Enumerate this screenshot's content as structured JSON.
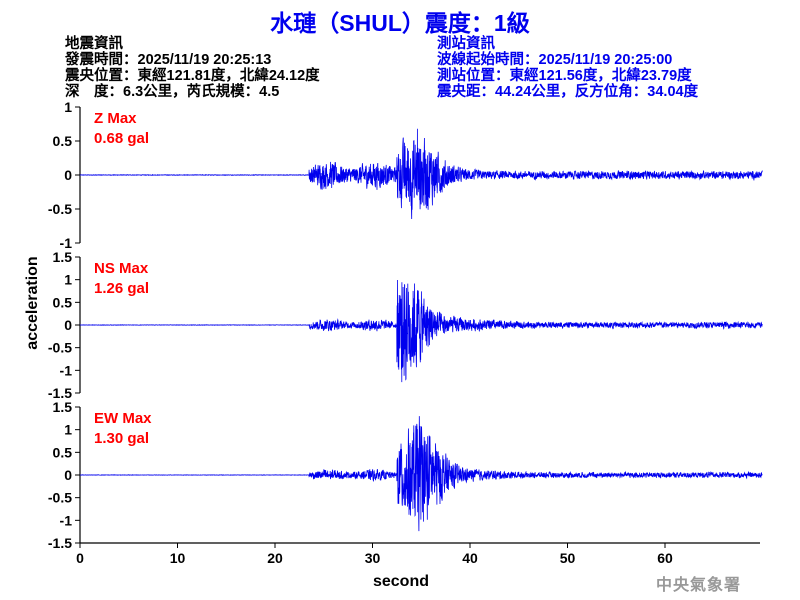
{
  "title": "水璉（SHUL）震度：1級",
  "quake_info": {
    "heading": "地震資訊",
    "origin_time": "發震時間：2025/11/19 20:25:13",
    "epicenter": "震央位置：東經121.81度，北緯24.12度",
    "depth_magnitude": "深　度：6.3公里，芮氏規模：4.5"
  },
  "station_info": {
    "heading": "測站資訊",
    "start_time": "波線起始時間：2025/11/19 20:25:00",
    "location": "測站位置：東經121.56度，北緯23.79度",
    "distance_azimuth": "震央距：44.24公里，反方位角：34.04度"
  },
  "watermark": "中央氣象署",
  "colors": {
    "title": "#0000ee",
    "trace": "#0000ee",
    "max_label": "#ff0000",
    "station_info": "#0000ee"
  },
  "chart_data": {
    "type": "line",
    "xlabel": "second",
    "ylabel": "acceleration",
    "xlim": [
      0,
      70
    ],
    "xticks": [
      "0",
      "10",
      "20",
      "30",
      "40",
      "50",
      "60"
    ],
    "p_arrival_s": 23.5,
    "s_arrival_s": 32.5,
    "panels": [
      {
        "component": "Z",
        "label": "Z Max",
        "max_text": "0.68 gal",
        "max": 0.68,
        "peak_time_s": 34.6,
        "ylim": [
          -1,
          1
        ],
        "yticks": [
          "1",
          "0.5",
          "0",
          "-0.5",
          "-1"
        ]
      },
      {
        "component": "NS",
        "label": "NS Max",
        "max_text": "1.26 gal",
        "max": 1.26,
        "peak_time_s": 33.0,
        "ylim": [
          -1.5,
          1.5
        ],
        "yticks": [
          "1.5",
          "1",
          "0.5",
          "0",
          "-0.5",
          "-1",
          "-1.5"
        ]
      },
      {
        "component": "EW",
        "label": "EW Max",
        "max_text": "1.30 gal",
        "max": 1.3,
        "peak_time_s": 34.8,
        "ylim": [
          -1.5,
          1.5
        ],
        "yticks": [
          "1.5",
          "1",
          "0.5",
          "0",
          "-0.5",
          "-1",
          "-1.5"
        ]
      }
    ]
  }
}
